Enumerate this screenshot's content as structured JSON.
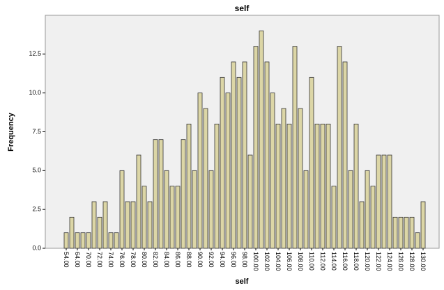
{
  "chart_data": {
    "type": "bar",
    "title": "self",
    "x_label": "self",
    "y_label": "Frequency",
    "categories": [
      "54.00",
      null,
      "64.00",
      null,
      "70.00",
      null,
      "72.00",
      null,
      "74.00",
      null,
      "76.00",
      null,
      "78.00",
      null,
      "80.00",
      null,
      "82.00",
      null,
      "84.00",
      null,
      "86.00",
      null,
      "88.00",
      null,
      "90.00",
      null,
      "92.00",
      null,
      "94.00",
      null,
      "96.00",
      null,
      "98.00",
      null,
      "100.00",
      null,
      "102.00",
      null,
      "104.00",
      null,
      "106.00",
      null,
      "108.00",
      null,
      "110.00",
      null,
      "112.00",
      null,
      "114.00",
      null,
      "116.00",
      null,
      "118.00",
      null,
      "120.00",
      null,
      "122.00",
      null,
      "124.00",
      null,
      "126.00",
      null,
      "128.00",
      null,
      "130.00"
    ],
    "values": [
      1,
      2,
      1,
      1,
      1,
      3,
      2,
      3,
      1,
      1,
      5,
      3,
      3,
      6,
      4,
      3,
      7,
      7,
      5,
      4,
      4,
      7,
      8,
      5,
      10,
      9,
      5,
      8,
      11,
      10,
      12,
      11,
      12,
      6,
      13,
      14,
      12,
      10,
      8,
      9,
      8,
      13,
      9,
      5,
      11,
      8,
      8,
      8,
      4,
      13,
      12,
      5,
      8,
      3,
      5,
      4,
      6,
      6,
      6,
      2,
      2,
      2,
      2,
      1,
      3
    ],
    "color": "#dcd6a6",
    "ylim": [
      0,
      15
    ],
    "yticks": [
      {
        "value": 0,
        "label": "0.0"
      },
      2.5,
      {
        "value": 5,
        "label": "5.0"
      },
      7.5,
      {
        "value": 10,
        "label": "10.0"
      },
      12.5
    ]
  }
}
